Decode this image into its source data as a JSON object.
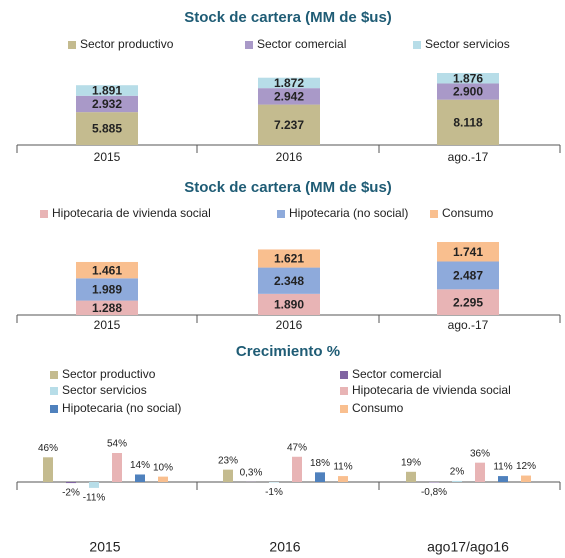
{
  "chart_data": [
    {
      "type": "bar",
      "stacked": true,
      "title": "Stock de cartera (MM de $us)",
      "categories": [
        "2015",
        "2016",
        "ago.-17"
      ],
      "series": [
        {
          "name": "Sector productivo",
          "color": "#c4bb8f",
          "values": [
            5885,
            7237,
            8118
          ],
          "value_labels": [
            "5.885",
            "7.237",
            "8.118"
          ]
        },
        {
          "name": "Sector comercial",
          "color": "#a999c8",
          "values": [
            2932,
            2942,
            2900
          ],
          "value_labels": [
            "2.932",
            "2.942",
            "2.900"
          ]
        },
        {
          "name": "Sector servicios",
          "color": "#b7dde8",
          "values": [
            1891,
            1872,
            1876
          ],
          "value_labels": [
            "1.891",
            "1.872",
            "1.876"
          ]
        }
      ]
    },
    {
      "type": "bar",
      "stacked": true,
      "title": "Stock de cartera (MM de $us)",
      "categories": [
        "2015",
        "2016",
        "ago.-17"
      ],
      "series": [
        {
          "name": "Hipotecaria de vivienda social",
          "color": "#e8b4b5",
          "values": [
            1288,
            1890,
            2295
          ],
          "value_labels": [
            "1.288",
            "1.890",
            "2.295"
          ]
        },
        {
          "name": "Hipotecaria (no social)",
          "color": "#8eaadb",
          "values": [
            1989,
            2348,
            2487
          ],
          "value_labels": [
            "1.989",
            "2.348",
            "2.487"
          ]
        },
        {
          "name": "Consumo",
          "color": "#f9bf8f",
          "values": [
            1461,
            1621,
            1741
          ],
          "value_labels": [
            "1.461",
            "1.621",
            "1.741"
          ]
        }
      ]
    },
    {
      "type": "bar",
      "stacked": false,
      "title": "Crecimiento %",
      "categories": [
        "2015",
        "2016",
        "ago17/ago16"
      ],
      "series": [
        {
          "name": "Sector productivo",
          "color": "#c4bb8f",
          "values": [
            46,
            23,
            19
          ],
          "value_labels": [
            "46%",
            "23%",
            "19%"
          ]
        },
        {
          "name": "Sector comercial",
          "color": "#8064a2",
          "values": [
            -2,
            0.3,
            -0.8
          ],
          "value_labels": [
            "-2%",
            "0,3%",
            "-0,8%"
          ]
        },
        {
          "name": "Sector servicios",
          "color": "#b7dde8",
          "values": [
            -11,
            -1,
            2
          ],
          "value_labels": [
            "-11%",
            "-1%",
            "2%"
          ]
        },
        {
          "name": "Hipotecaria de vivienda social",
          "color": "#e8b4b5",
          "values": [
            54,
            47,
            36
          ],
          "value_labels": [
            "54%",
            "47%",
            "36%"
          ]
        },
        {
          "name": "Hipotecaria (no social)",
          "color": "#4f81bd",
          "values": [
            14,
            18,
            11
          ],
          "value_labels": [
            "14%",
            "18%",
            "11%"
          ]
        },
        {
          "name": "Consumo",
          "color": "#f9bf8f",
          "values": [
            10,
            11,
            12
          ],
          "value_labels": [
            "10%",
            "11%",
            "12%"
          ]
        }
      ]
    }
  ]
}
